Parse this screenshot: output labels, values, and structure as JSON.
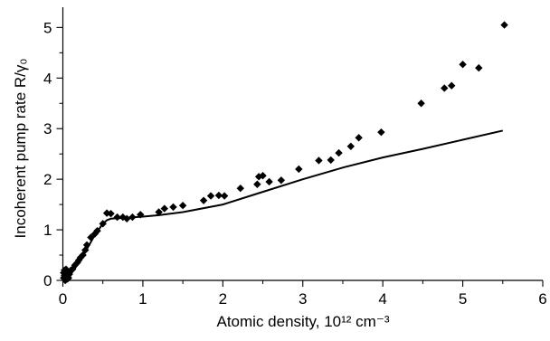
{
  "chart_data": {
    "type": "scatter",
    "title": "",
    "xlabel": "Atomic density, 10¹² cm⁻³",
    "ylabel": "Incoherent pump rate R/γ₀",
    "xlim": [
      0,
      6
    ],
    "ylim": [
      0,
      5.4
    ],
    "x_ticks": [
      "0",
      "1",
      "2",
      "3",
      "4",
      "5",
      "6"
    ],
    "y_ticks": [
      "0",
      "1",
      "2",
      "3",
      "4",
      "5"
    ],
    "grid": false,
    "legend": "none",
    "series": [
      {
        "type": "scatter",
        "marker": "diamond",
        "x": [
          0.01,
          0.01,
          0.02,
          0.02,
          0.03,
          0.03,
          0.04,
          0.04,
          0.05,
          0.06,
          0.07,
          0.08,
          0.1,
          0.12,
          0.15,
          0.18,
          0.2,
          0.22,
          0.25,
          0.28,
          0.3,
          0.35,
          0.4,
          0.43,
          0.5,
          0.55,
          0.6,
          0.68,
          0.75,
          0.8,
          0.87,
          0.97,
          1.2,
          1.27,
          1.38,
          1.5,
          1.76,
          1.85,
          1.95,
          2.02,
          2.22,
          2.43,
          2.45,
          2.5,
          2.58,
          2.73,
          2.95,
          3.2,
          3.35,
          3.45,
          3.6,
          3.7,
          3.98,
          4.48,
          4.77,
          4.86,
          5.0,
          5.2,
          5.52
        ],
        "y": [
          0.15,
          0.05,
          0.2,
          0.1,
          0.0,
          0.12,
          0.08,
          0.22,
          0.15,
          0.03,
          0.05,
          0.12,
          0.2,
          0.22,
          0.3,
          0.35,
          0.4,
          0.45,
          0.5,
          0.6,
          0.7,
          0.85,
          0.92,
          0.98,
          1.12,
          1.33,
          1.32,
          1.25,
          1.25,
          1.22,
          1.25,
          1.3,
          1.35,
          1.42,
          1.45,
          1.48,
          1.58,
          1.67,
          1.68,
          1.67,
          1.82,
          1.9,
          2.05,
          2.07,
          1.95,
          1.98,
          2.2,
          2.37,
          2.38,
          2.52,
          2.65,
          2.82,
          2.93,
          3.5,
          3.8,
          3.85,
          4.27,
          4.2,
          5.05
        ]
      },
      {
        "type": "line",
        "x": [
          0.0,
          0.05,
          0.1,
          0.2,
          0.3,
          0.4,
          0.5,
          0.55,
          0.6,
          0.7,
          0.8,
          1.0,
          1.2,
          1.5,
          2.0,
          2.5,
          3.0,
          3.5,
          4.0,
          4.5,
          5.0,
          5.5
        ],
        "y": [
          0.0,
          0.04,
          0.12,
          0.35,
          0.62,
          0.9,
          1.12,
          1.19,
          1.22,
          1.23,
          1.24,
          1.26,
          1.29,
          1.35,
          1.5,
          1.75,
          2.0,
          2.23,
          2.43,
          2.6,
          2.78,
          2.96
        ]
      }
    ]
  }
}
